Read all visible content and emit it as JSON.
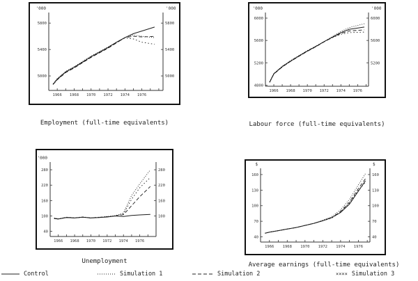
{
  "chart_data": [
    {
      "type": "line",
      "caption": "Employment (full-time equivalents)",
      "unit_left": "'000",
      "unit_right": "'000",
      "yticks": [
        5000,
        5400,
        5800
      ],
      "ytick_labels_right": [
        "5000",
        "5400",
        "5800"
      ],
      "ylim": [
        4780,
        5960
      ],
      "xlim": [
        1965,
        1978.5
      ],
      "xticks": [
        1966,
        1968,
        1970,
        1972,
        1974,
        1976
      ],
      "series": [
        {
          "name": "Control",
          "style": "solid",
          "x": [
            1965.5,
            1966,
            1967,
            1968,
            1969,
            1970,
            1971,
            1972,
            1973,
            1974,
            1975,
            1976,
            1977.5
          ],
          "y": [
            4870,
            4950,
            5060,
            5130,
            5210,
            5290,
            5360,
            5430,
            5510,
            5580,
            5640,
            5680,
            5740
          ]
        },
        {
          "name": "Simulation 1",
          "style": "dotted",
          "x": [
            1965.5,
            1966,
            1967,
            1968,
            1969,
            1970,
            1971,
            1972,
            1973,
            1974,
            1975,
            1976,
            1977.5
          ],
          "y": [
            4880,
            4960,
            5070,
            5140,
            5220,
            5300,
            5370,
            5440,
            5510,
            5580,
            5620,
            5600,
            5580
          ]
        },
        {
          "name": "Simulation 2",
          "style": "dashed",
          "x": [
            1965.5,
            1966,
            1967,
            1968,
            1969,
            1970,
            1971,
            1972,
            1973,
            1974,
            1975,
            1976,
            1977.5
          ],
          "y": [
            4870,
            4940,
            5050,
            5120,
            5200,
            5280,
            5350,
            5420,
            5500,
            5580,
            5600,
            5590,
            5600
          ]
        },
        {
          "name": "Simulation 3",
          "style": "cross",
          "x": [
            1965.5,
            1966,
            1967,
            1968,
            1969,
            1970,
            1971,
            1972,
            1973,
            1974,
            1975,
            1976,
            1977.5
          ],
          "y": [
            4875,
            4945,
            5055,
            5125,
            5205,
            5285,
            5355,
            5425,
            5505,
            5575,
            5560,
            5510,
            5480
          ]
        }
      ]
    },
    {
      "type": "line",
      "caption": "Labour force (full-time equivalents)",
      "unit_left": "'000",
      "unit_right": "'000",
      "yticks": [
        4800,
        5200,
        5600,
        6000
      ],
      "ytick_labels_right": [
        "5200",
        "5600",
        "6000"
      ],
      "ytick_right_values": [
        5200,
        5600,
        6000
      ],
      "ylim": [
        4780,
        6100
      ],
      "xlim": [
        1965,
        1977.3
      ],
      "xticks": [
        1966,
        1968,
        1970,
        1972,
        1974,
        1976
      ],
      "series": [
        {
          "name": "Control",
          "style": "solid",
          "x": [
            1965.5,
            1966,
            1967,
            1968,
            1969,
            1970,
            1971,
            1972,
            1973,
            1974,
            1975,
            1976.8
          ],
          "y": [
            4850,
            5000,
            5130,
            5230,
            5320,
            5410,
            5490,
            5580,
            5660,
            5740,
            5800,
            5840
          ]
        },
        {
          "name": "Simulation 1",
          "style": "dotted",
          "x": [
            1965.5,
            1966,
            1967,
            1968,
            1969,
            1970,
            1971,
            1972,
            1973,
            1974,
            1975,
            1976.8
          ],
          "y": [
            4860,
            5010,
            5140,
            5240,
            5330,
            5420,
            5500,
            5580,
            5670,
            5760,
            5830,
            5900
          ]
        },
        {
          "name": "Simulation 2",
          "style": "dashed",
          "x": [
            1965.5,
            1966,
            1967,
            1968,
            1969,
            1970,
            1971,
            1972,
            1973,
            1974,
            1975,
            1976.8
          ],
          "y": [
            4850,
            4995,
            5125,
            5225,
            5315,
            5405,
            5485,
            5575,
            5655,
            5725,
            5770,
            5790
          ]
        },
        {
          "name": "Simulation 3",
          "style": "cross",
          "x": [
            1965.5,
            1966,
            1967,
            1968,
            1969,
            1970,
            1971,
            1972,
            1973,
            1974,
            1975,
            1976.8
          ],
          "y": [
            4855,
            5005,
            5135,
            5235,
            5325,
            5415,
            5495,
            5578,
            5650,
            5710,
            5740,
            5750
          ]
        }
      ]
    },
    {
      "type": "line",
      "caption": "Unemployment",
      "unit_left": "'000",
      "unit_right": "",
      "yticks": [
        40,
        100,
        160,
        220,
        280
      ],
      "ytick_labels_right": [
        "100",
        "160",
        "220",
        "280"
      ],
      "ytick_right_values": [
        100,
        160,
        220,
        280
      ],
      "ylim": [
        20,
        310
      ],
      "xlim": [
        1965,
        1978
      ],
      "xticks": [
        1966,
        1968,
        1970,
        1972,
        1974,
        1976
      ],
      "series": [
        {
          "name": "Control",
          "style": "solid",
          "x": [
            1965.5,
            1966,
            1967,
            1968,
            1969,
            1970,
            1971,
            1972,
            1973,
            1974,
            1975,
            1976,
            1977.3
          ],
          "y": [
            90,
            88,
            94,
            92,
            95,
            92,
            94,
            96,
            100,
            98,
            102,
            104,
            106
          ]
        },
        {
          "name": "Simulation 1",
          "style": "dotted",
          "x": [
            1965.5,
            1966,
            1967,
            1968,
            1969,
            1970,
            1971,
            1972,
            1973,
            1974,
            1975,
            1976,
            1977.3
          ],
          "y": [
            92,
            89,
            95,
            93,
            96,
            93,
            95,
            98,
            101,
            112,
            180,
            225,
            280
          ]
        },
        {
          "name": "Simulation 2",
          "style": "dashed",
          "x": [
            1965.5,
            1966,
            1967,
            1968,
            1969,
            1970,
            1971,
            1972,
            1973,
            1974,
            1975,
            1976,
            1977.3
          ],
          "y": [
            91,
            88,
            94,
            92,
            95,
            92,
            94,
            97,
            100,
            105,
            140,
            175,
            215
          ]
        },
        {
          "name": "Simulation 3",
          "style": "cross",
          "x": [
            1965.5,
            1966,
            1967,
            1968,
            1969,
            1970,
            1971,
            1972,
            1973,
            1974,
            1975,
            1976,
            1977.3
          ],
          "y": [
            90,
            88,
            95,
            93,
            96,
            93,
            95,
            97,
            100,
            108,
            165,
            210,
            250
          ]
        }
      ]
    },
    {
      "type": "line",
      "caption": "Average earnings (full-time equivalents)",
      "unit_left": "$",
      "unit_right": "$",
      "yticks": [
        40,
        70,
        100,
        130,
        160
      ],
      "ytick_labels_right": [
        "40",
        "70",
        "100",
        "130",
        "160"
      ],
      "ylim": [
        30,
        172
      ],
      "xlim": [
        1965,
        1977.3
      ],
      "xticks": [
        1966,
        1968,
        1970,
        1972,
        1974,
        1976
      ],
      "series": [
        {
          "name": "Control",
          "style": "solid",
          "x": [
            1965.5,
            1966,
            1967,
            1968,
            1969,
            1970,
            1971,
            1972,
            1973,
            1974,
            1975,
            1976,
            1976.8
          ],
          "y": [
            47,
            49,
            52,
            55,
            58,
            62,
            66,
            71,
            77,
            87,
            103,
            128,
            148
          ]
        },
        {
          "name": "Simulation 1",
          "style": "dotted",
          "x": [
            1965.5,
            1966,
            1967,
            1968,
            1969,
            1970,
            1971,
            1972,
            1973,
            1974,
            1975,
            1976,
            1976.8
          ],
          "y": [
            47,
            49,
            52,
            55,
            58,
            62,
            66,
            72,
            79,
            92,
            112,
            140,
            162
          ]
        },
        {
          "name": "Simulation 2",
          "style": "dashed",
          "x": [
            1965.5,
            1966,
            1967,
            1968,
            1969,
            1970,
            1971,
            1972,
            1973,
            1974,
            1975,
            1976,
            1976.8
          ],
          "y": [
            47,
            49,
            52,
            55,
            58,
            62,
            66,
            71,
            77,
            89,
            107,
            133,
            152
          ]
        },
        {
          "name": "Simulation 3",
          "style": "cross",
          "x": [
            1965.5,
            1966,
            1967,
            1968,
            1969,
            1970,
            1971,
            1972,
            1973,
            1974,
            1975,
            1976,
            1976.8
          ],
          "y": [
            47,
            49,
            52,
            55,
            58,
            62,
            66,
            71,
            76,
            88,
            105,
            130,
            145
          ]
        }
      ]
    }
  ],
  "legend": {
    "control": "Control",
    "sim1": "Simulation 1",
    "sim2": "Simulation 2",
    "sim3": "Simulation 3"
  }
}
